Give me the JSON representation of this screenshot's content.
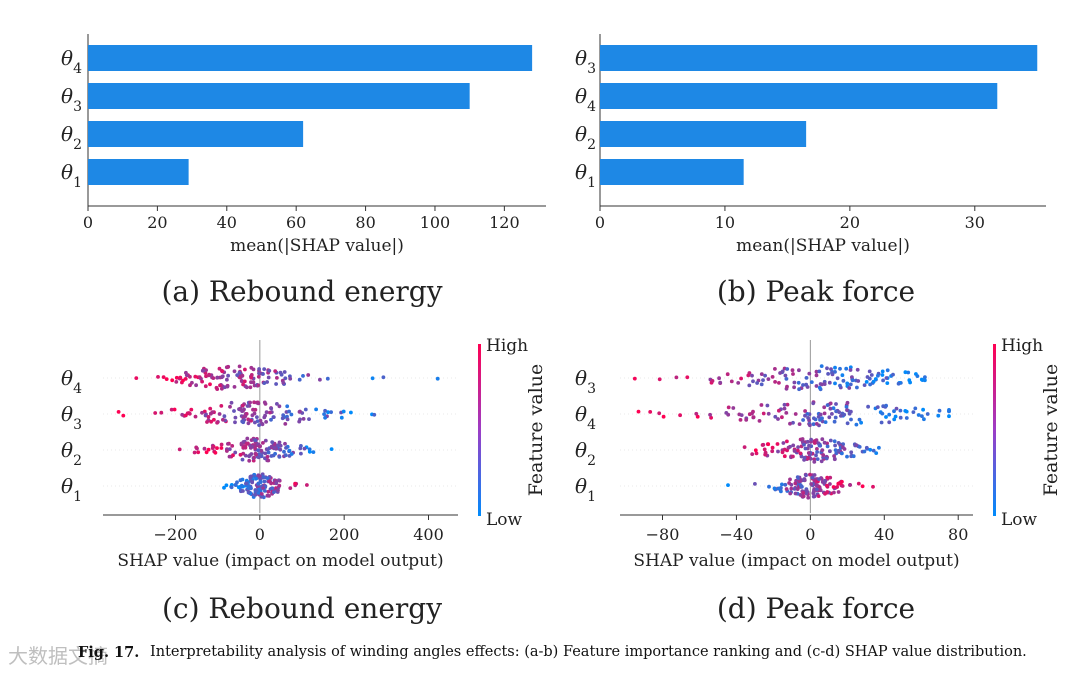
{
  "figure": {
    "caption_label": "Fig. 17.",
    "caption_text": "Interpretability analysis of winding angles effects: (a-b) Feature importance ranking and (c-d) SHAP value distribution.",
    "watermark_text": "大数据文摘"
  },
  "colors": {
    "bar": "#1e88e5",
    "high": "#ff0052",
    "low": "#008bfb",
    "axis": "#333333",
    "zero_line": "#999999"
  },
  "chart_data": [
    {
      "id": "a",
      "type": "bar",
      "orientation": "horizontal",
      "categories": [
        "θ4",
        "θ3",
        "θ2",
        "θ1"
      ],
      "values": [
        128,
        110,
        62,
        29
      ],
      "xlabel": "mean(|SHAP value|)",
      "xticks": [
        0,
        20,
        40,
        60,
        80,
        100,
        120
      ],
      "xlim": [
        0,
        132
      ],
      "subtitle": "(a) Rebound energy"
    },
    {
      "id": "b",
      "type": "bar",
      "orientation": "horizontal",
      "categories": [
        "θ3",
        "θ4",
        "θ2",
        "θ1"
      ],
      "values": [
        35,
        31.8,
        16.5,
        11.5
      ],
      "xlabel": "mean(|SHAP value|)",
      "xticks": [
        0,
        10,
        20,
        30
      ],
      "xlim": [
        0,
        35.7
      ],
      "subtitle": "(b) Peak force"
    },
    {
      "id": "c",
      "type": "scatter",
      "chart_style": "beeswarm",
      "categories": [
        "θ4",
        "θ3",
        "θ2",
        "θ1"
      ],
      "xlabel": "SHAP value (impact on model output)",
      "xticks": [
        -200,
        0,
        200,
        400
      ],
      "xlim": [
        -372,
        470
      ],
      "colorbar_label": "Feature value",
      "colorbar_high": "High",
      "colorbar_low": "Low",
      "subtitle": "(c) Rebound energy",
      "features": [
        {
          "name": "θ4",
          "min": -340,
          "max": 425,
          "center": -70,
          "spread": 85,
          "red_side": "left"
        },
        {
          "name": "θ3",
          "min": -335,
          "max": 330,
          "center": -20,
          "spread": 105,
          "red_side": "left"
        },
        {
          "name": "θ2",
          "min": -190,
          "max": 190,
          "center": -10,
          "spread": 55,
          "red_side": "left"
        },
        {
          "name": "θ1",
          "min": -85,
          "max": 140,
          "center": 0,
          "spread": 30,
          "red_side": "right"
        }
      ]
    },
    {
      "id": "d",
      "type": "scatter",
      "chart_style": "beeswarm",
      "categories": [
        "θ3",
        "θ4",
        "θ2",
        "θ1"
      ],
      "xlabel": "SHAP value (impact on model output)",
      "xticks": [
        -80,
        -40,
        0,
        40,
        80
      ],
      "xlim": [
        -103,
        88
      ],
      "colorbar_label": "Feature value",
      "colorbar_high": "High",
      "colorbar_low": "Low",
      "subtitle": "(d) Peak force",
      "features": [
        {
          "name": "θ3",
          "min": -95,
          "max": 62,
          "center": 5,
          "spread": 32,
          "red_side": "left"
        },
        {
          "name": "θ4",
          "min": -93,
          "max": 75,
          "center": 5,
          "spread": 35,
          "red_side": "left"
        },
        {
          "name": "θ2",
          "min": -48,
          "max": 58,
          "center": 0,
          "spread": 16,
          "red_side": "left"
        },
        {
          "name": "θ1",
          "min": -47,
          "max": 36,
          "center": 0,
          "spread": 10,
          "red_side": "right"
        }
      ]
    }
  ]
}
